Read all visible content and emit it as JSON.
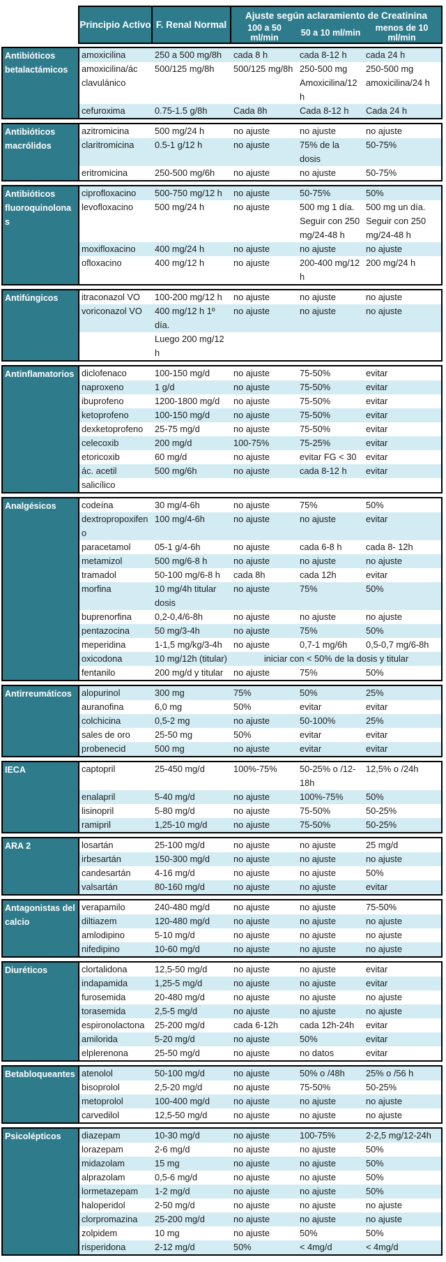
{
  "table": {
    "header": {
      "col_drug": "Principio Activo",
      "col_normal": "F. Renal Normal",
      "group_title": "Ajuste según aclaramiento de Creatinina",
      "col_c100": "100 a 50 ml/min",
      "col_c50": "50 a 10 ml/min",
      "col_c10": "menos de 10 ml/min"
    },
    "colors": {
      "header_teal": "#2e7b8c",
      "stripe_blue": "#d3ecf3",
      "border_black": "#000000",
      "text": "#1a1a1a"
    },
    "sections": [
      {
        "category": "Antibióticos betalactámicos",
        "rows": [
          {
            "drug": "amoxicilina",
            "normal": "250 a 500 mg/8h",
            "c100": "cada 8 h",
            "c50": "cada 8-12 h",
            "c10": "cada 24 h",
            "shaded": true
          },
          {
            "drug": "amoxicilina/ác clavulánico",
            "normal": "500/125 mg/8h",
            "c100": "500/125 mg/8h",
            "c50": "250-500 mg Amoxicilina/12 h",
            "c10": "250-500 mg amoxicilina/24 h",
            "shaded": false
          },
          {
            "drug": "cefuroxima",
            "normal": "0.75-1.5 g/8h",
            "c100": "Cada 8h",
            "c50": "Cada 8-12 h",
            "c10": "Cada 24 h",
            "shaded": true
          }
        ]
      },
      {
        "category": "Antibióticos macrólidos",
        "rows": [
          {
            "drug": "azitromicina",
            "normal": "500 mg/24 h",
            "c100": "no ajuste",
            "c50": "no ajuste",
            "c10": "no ajuste",
            "shaded": false
          },
          {
            "drug": "claritromicina",
            "normal": "0.5-1 g/12 h",
            "c100": "no ajuste",
            "c50": "75% de la dosis",
            "c10": "50-75%",
            "shaded": true
          },
          {
            "drug": "eritromicina",
            "normal": "250-500 mg/6h",
            "c100": "no ajuste",
            "c50": "no ajuste",
            "c10": "50-75%",
            "shaded": false
          }
        ]
      },
      {
        "category": "Antibióticos fluoroquinolonas",
        "rows": [
          {
            "drug": "ciprofloxacino",
            "normal": "500-750 mg/12 h",
            "c100": "no ajuste",
            "c50": "50-75%",
            "c10": "50%",
            "shaded": true
          },
          {
            "drug": "levofloxacino",
            "normal": "500 mg/24 h",
            "c100": "no ajuste",
            "c50": "500 mg 1 día. Seguir con 250 mg/24-48 h",
            "c10": "500 mg un día. Seguir con 250 mg/24-48 h",
            "shaded": false
          },
          {
            "drug": "moxifloxacino",
            "normal": "400 mg/24 h",
            "c100": "no ajuste",
            "c50": "no ajuste",
            "c10": "no ajuste",
            "shaded": true
          },
          {
            "drug": "ofloxacino",
            "normal": "400 mg/12 h",
            "c100": "no ajuste",
            "c50": "200-400 mg/12 h",
            "c10": "200 mg/24 h",
            "shaded": false
          }
        ]
      },
      {
        "category": "Antifúngicos",
        "rows": [
          {
            "drug": "itraconazol VO",
            "normal": "100-200 mg/12 h",
            "c100": "no ajuste",
            "c50": "no ajuste",
            "c10": "no ajuste",
            "shaded": false
          },
          {
            "drug": "voriconazol VO",
            "normal": "400 mg/12 h 1º día.",
            "c100": "no ajuste",
            "c50": "no ajuste",
            "c10": "no ajuste",
            "shaded": true
          },
          {
            "drug": "",
            "normal": "Luego 200 mg/12 h",
            "c100": "",
            "c50": "",
            "c10": "",
            "shaded": false
          }
        ]
      },
      {
        "category": "Antinflamatorios",
        "rows": [
          {
            "drug": "diclofenaco",
            "normal": "100-150 mg/d",
            "c100": "no ajuste",
            "c50": "75-50%",
            "c10": "evitar",
            "shaded": false
          },
          {
            "drug": "naproxeno",
            "normal": "1 g/d",
            "c100": "no ajuste",
            "c50": "75-50%",
            "c10": "evitar",
            "shaded": true
          },
          {
            "drug": "ibuprofeno",
            "normal": "1200-1800 mg/d",
            "c100": "no ajuste",
            "c50": "75-50%",
            "c10": "evitar",
            "shaded": false
          },
          {
            "drug": "ketoprofeno",
            "normal": "100-150 mg/d",
            "c100": "no ajuste",
            "c50": "75-50%",
            "c10": "evitar",
            "shaded": true
          },
          {
            "drug": "dexketoprofeno",
            "normal": "25-75 mg/d",
            "c100": "no ajuste",
            "c50": "75-50%",
            "c10": "evitar",
            "shaded": false
          },
          {
            "drug": "celecoxib",
            "normal": "200 mg/d",
            "c100": "100-75%",
            "c50": "75-25%",
            "c10": "evitar",
            "shaded": true
          },
          {
            "drug": "etoricoxib",
            "normal": "60 mg/d",
            "c100": "no ajuste",
            "c50": "evitar FG < 30",
            "c10": "evitar",
            "shaded": false
          },
          {
            "drug": "ác. acetil",
            "normal": "500 mg/6h",
            "c100": "no ajuste",
            "c50": "cada 8-12 h",
            "c10": "evitar",
            "shaded": true
          },
          {
            "drug": "salicílico",
            "normal": "",
            "c100": "",
            "c50": "",
            "c10": "",
            "shaded": false
          }
        ]
      },
      {
        "category": "Analgésicos",
        "rows": [
          {
            "drug": "codeína",
            "normal": "30 mg/4-6h",
            "c100": "no ajuste",
            "c50": "75%",
            "c10": "50%",
            "shaded": false
          },
          {
            "drug": "dextropropoxifeno",
            "normal": "100 mg/4-6h",
            "c100": "no ajuste",
            "c50": "no ajuste",
            "c10": "evitar",
            "shaded": true
          },
          {
            "drug": "paracetamol",
            "normal": "05-1 g/4-6h",
            "c100": "no ajuste",
            "c50": "cada 6-8 h",
            "c10": "cada 8- 12h",
            "shaded": false
          },
          {
            "drug": "metamizol",
            "normal": "500 mg/6-8 h",
            "c100": "no ajuste",
            "c50": "no ajuste",
            "c10": "no ajuste",
            "shaded": true
          },
          {
            "drug": "tramadol",
            "normal": "50-100 mg/6-8 h",
            "c100": "cada 8h",
            "c50": "cada 12h",
            "c10": "evitar",
            "shaded": false
          },
          {
            "drug": "morfina",
            "normal": "10 mg/4h titular dosis",
            "c100": "no ajuste",
            "c50": "75%",
            "c10": "50%",
            "shaded": true
          },
          {
            "drug": "buprenorfina",
            "normal": "0,2-0,4/6-8h",
            "c100": "no ajuste",
            "c50": "no ajuste",
            "c10": "no ajuste",
            "shaded": false
          },
          {
            "drug": "pentazocina",
            "normal": "50 mg/3-4h",
            "c100": "no ajuste",
            "c50": "75%",
            "c10": "50%",
            "shaded": true
          },
          {
            "drug": "meperidina",
            "normal": "1-1,5 mg/kg/3-4h",
            "c100": "no ajuste",
            "c50": "0,7-1 mg/6h",
            "c10": "0,5-0,7 mg/6-8h",
            "shaded": false
          },
          {
            "drug": "oxicodona",
            "normal": "10 mg/12h (titular)",
            "span": "iniciar con < 50% de la dosis y titular",
            "shaded": true
          },
          {
            "drug": "fentanilo",
            "normal": "200 mg/d y titular",
            "c100": "no ajuste",
            "c50": "75%",
            "c10": "50%",
            "shaded": false
          }
        ]
      },
      {
        "category": "Antirreumáticos",
        "rows": [
          {
            "drug": "alopurinol",
            "normal": "300 mg",
            "c100": "75%",
            "c50": "50%",
            "c10": "25%",
            "shaded": true
          },
          {
            "drug": "auranofina",
            "normal": "6,0 mg",
            "c100": "50%",
            "c50": "evitar",
            "c10": "evitar",
            "shaded": false
          },
          {
            "drug": "colchicina",
            "normal": "0,5-2 mg",
            "c100": "no ajuste",
            "c50": "50-100%",
            "c10": "25%",
            "shaded": true
          },
          {
            "drug": "sales de oro",
            "normal": "25-50 mg",
            "c100": "50%",
            "c50": "evitar",
            "c10": "evitar",
            "shaded": false
          },
          {
            "drug": "probenecid",
            "normal": "500 mg",
            "c100": "no ajuste",
            "c50": "evitar",
            "c10": "evitar",
            "shaded": true
          }
        ]
      },
      {
        "category": "IECA",
        "rows": [
          {
            "drug": "captopril",
            "normal": "25-450 mg/d",
            "c100": "100%-75%",
            "c50": "50-25% o /12-18h",
            "c10": "12,5% o /24h",
            "shaded": false
          },
          {
            "drug": "enalapril",
            "normal": "5-40 mg/d",
            "c100": "no ajuste",
            "c50": "100%-75%",
            "c10": "50%",
            "shaded": true
          },
          {
            "drug": "lisinopril",
            "normal": "5-80 mg/d",
            "c100": "no ajuste",
            "c50": "75-50%",
            "c10": "50-25%",
            "shaded": false
          },
          {
            "drug": "ramipril",
            "normal": "1,25-10 mg/d",
            "c100": "no ajuste",
            "c50": "75-50%",
            "c10": "50-25%",
            "shaded": true
          }
        ]
      },
      {
        "category": "ARA 2",
        "rows": [
          {
            "drug": "losartán",
            "normal": "25-100 mg/d",
            "c100": "no ajuste",
            "c50": "no ajuste",
            "c10": "25 mg/d",
            "shaded": false
          },
          {
            "drug": "irbesartán",
            "normal": "150-300 mg/d",
            "c100": "no ajuste",
            "c50": "no ajuste",
            "c10": "no ajuste",
            "shaded": true
          },
          {
            "drug": "candesartán",
            "normal": "4-16 mg/d",
            "c100": "no ajuste",
            "c50": "no ajuste",
            "c10": "50%",
            "shaded": false
          },
          {
            "drug": "valsartán",
            "normal": "80-160 mg/d",
            "c100": "no ajuste",
            "c50": "no ajuste",
            "c10": "evitar",
            "shaded": true
          }
        ]
      },
      {
        "category": "Antagonistas del calcio",
        "rows": [
          {
            "drug": "verapamilo",
            "normal": "240-480 mg/d",
            "c100": "no ajuste",
            "c50": "no ajuste",
            "c10": "75-50%",
            "shaded": false
          },
          {
            "drug": "diltiazem",
            "normal": "120-480 mg/d",
            "c100": "no ajuste",
            "c50": "no ajuste",
            "c10": "no ajuste",
            "shaded": true
          },
          {
            "drug": "amlodipino",
            "normal": "5-10 mg/d",
            "c100": "no ajuste",
            "c50": "no ajuste",
            "c10": "no ajuste",
            "shaded": false
          },
          {
            "drug": "nifedipino",
            "normal": "10-60 mg/d",
            "c100": "no ajuste",
            "c50": "no ajuste",
            "c10": "no ajuste",
            "shaded": true
          }
        ]
      },
      {
        "category": "Diuréticos",
        "rows": [
          {
            "drug": "clortalidona",
            "normal": "12,5-50 mg/d",
            "c100": "no ajuste",
            "c50": "no ajuste",
            "c10": "evitar",
            "shaded": false
          },
          {
            "drug": "indapamida",
            "normal": "1,25-5 mg/d",
            "c100": "no ajuste",
            "c50": "no ajuste",
            "c10": "evitar",
            "shaded": true
          },
          {
            "drug": "furosemida",
            "normal": "20-480 mg/d",
            "c100": "no ajuste",
            "c50": "no ajuste",
            "c10": "no ajuste",
            "shaded": false
          },
          {
            "drug": "torasemida",
            "normal": "2,5-5 mg/d",
            "c100": "no ajuste",
            "c50": "no ajuste",
            "c10": "no ajuste",
            "shaded": true
          },
          {
            "drug": "espironolactona",
            "normal": "25-200 mg/d",
            "c100": "cada 6-12h",
            "c50": "cada 12h-24h",
            "c10": "evitar",
            "shaded": false
          },
          {
            "drug": "amilorida",
            "normal": "5-20 mg/d",
            "c100": "no ajuste",
            "c50": "50%",
            "c10": "evitar",
            "shaded": true
          },
          {
            "drug": "elplerenona",
            "normal": "25-50 mg/d",
            "c100": "no ajuste",
            "c50": "no datos",
            "c10": "evitar",
            "shaded": false
          }
        ]
      },
      {
        "category": "Betabloqueantes",
        "rows": [
          {
            "drug": "atenolol",
            "normal": "50-100 mg/d",
            "c100": "no ajuste",
            "c50": "50% o /48h",
            "c10": "25% o /56 h",
            "shaded": true
          },
          {
            "drug": "bisoprolol",
            "normal": "2,5-20 mg/d",
            "c100": "no ajuste",
            "c50": "75-50%",
            "c10": "50-25%",
            "shaded": false
          },
          {
            "drug": "metoprolol",
            "normal": "100-400 mg/d",
            "c100": "no ajuste",
            "c50": "no ajuste",
            "c10": "no ajuste",
            "shaded": true
          },
          {
            "drug": "carvedilol",
            "normal": "12,5-50 mg/d",
            "c100": "no ajuste",
            "c50": "no ajuste",
            "c10": "no ajuste",
            "shaded": false
          }
        ]
      },
      {
        "category": "Psicolépticos",
        "rows": [
          {
            "drug": "diazepam",
            "normal": "10-30 mg/d",
            "c100": "no ajuste",
            "c50": "100-75%",
            "c10": "2-2,5 mg/12-24h",
            "shaded": true
          },
          {
            "drug": "lorazepam",
            "normal": "2-6 mg/d",
            "c100": "no ajuste",
            "c50": "no ajuste",
            "c10": "50%",
            "shaded": false
          },
          {
            "drug": "midazolam",
            "normal": "15 mg",
            "c100": "no ajuste",
            "c50": "no ajuste",
            "c10": "50%",
            "shaded": true
          },
          {
            "drug": "alprazolam",
            "normal": "0,5-6 mg/d",
            "c100": "no ajuste",
            "c50": "no ajuste",
            "c10": "50%",
            "shaded": false
          },
          {
            "drug": "lormetazepam",
            "normal": "1-2 mg/d",
            "c100": "no ajuste",
            "c50": "no ajuste",
            "c10": "50%",
            "shaded": true
          },
          {
            "drug": "haloperidol",
            "normal": "2-50 mg/d",
            "c100": "no ajuste",
            "c50": "no ajuste",
            "c10": "no ajuste",
            "shaded": false
          },
          {
            "drug": "clorpromazina",
            "normal": "25-200 mg/d",
            "c100": "no ajuste",
            "c50": "no ajuste",
            "c10": "no ajuste",
            "shaded": true
          },
          {
            "drug": "zolpidem",
            "normal": "10 mg",
            "c100": "no ajuste",
            "c50": "50%",
            "c10": "50%",
            "shaded": false
          },
          {
            "drug": "risperidona",
            "normal": "2-12 mg/d",
            "c100": "50%",
            "c50": "< 4mg/d",
            "c10": "< 4mg/d",
            "shaded": true
          }
        ]
      }
    ]
  }
}
